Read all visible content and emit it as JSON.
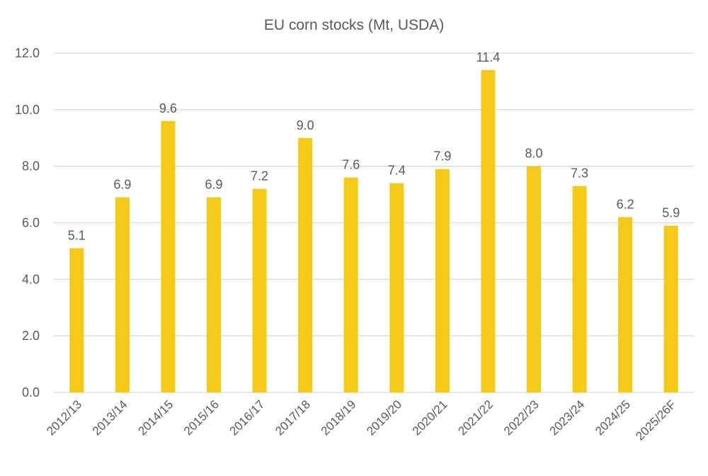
{
  "chart_data": {
    "type": "bar",
    "title": "EU corn stocks (Mt, USDA)",
    "xlabel": "",
    "ylabel": "",
    "ylim": [
      0,
      12
    ],
    "yticks": [
      "0.0",
      "2.0",
      "4.0",
      "6.0",
      "8.0",
      "10.0",
      "12.0"
    ],
    "grid": true,
    "legend": "none",
    "bar_color": "#F5C918",
    "categories": [
      "2012/13",
      "2013/14",
      "2014/15",
      "2015/16",
      "2016/17",
      "2017/18",
      "2018/19",
      "2019/20",
      "2020/21",
      "2021/22",
      "2022/23",
      "2023/24",
      "2024/25",
      "2025/26F"
    ],
    "values": [
      5.1,
      6.9,
      9.6,
      6.9,
      7.2,
      9.0,
      7.6,
      7.4,
      7.9,
      11.4,
      8.0,
      7.3,
      6.2,
      5.9
    ]
  }
}
